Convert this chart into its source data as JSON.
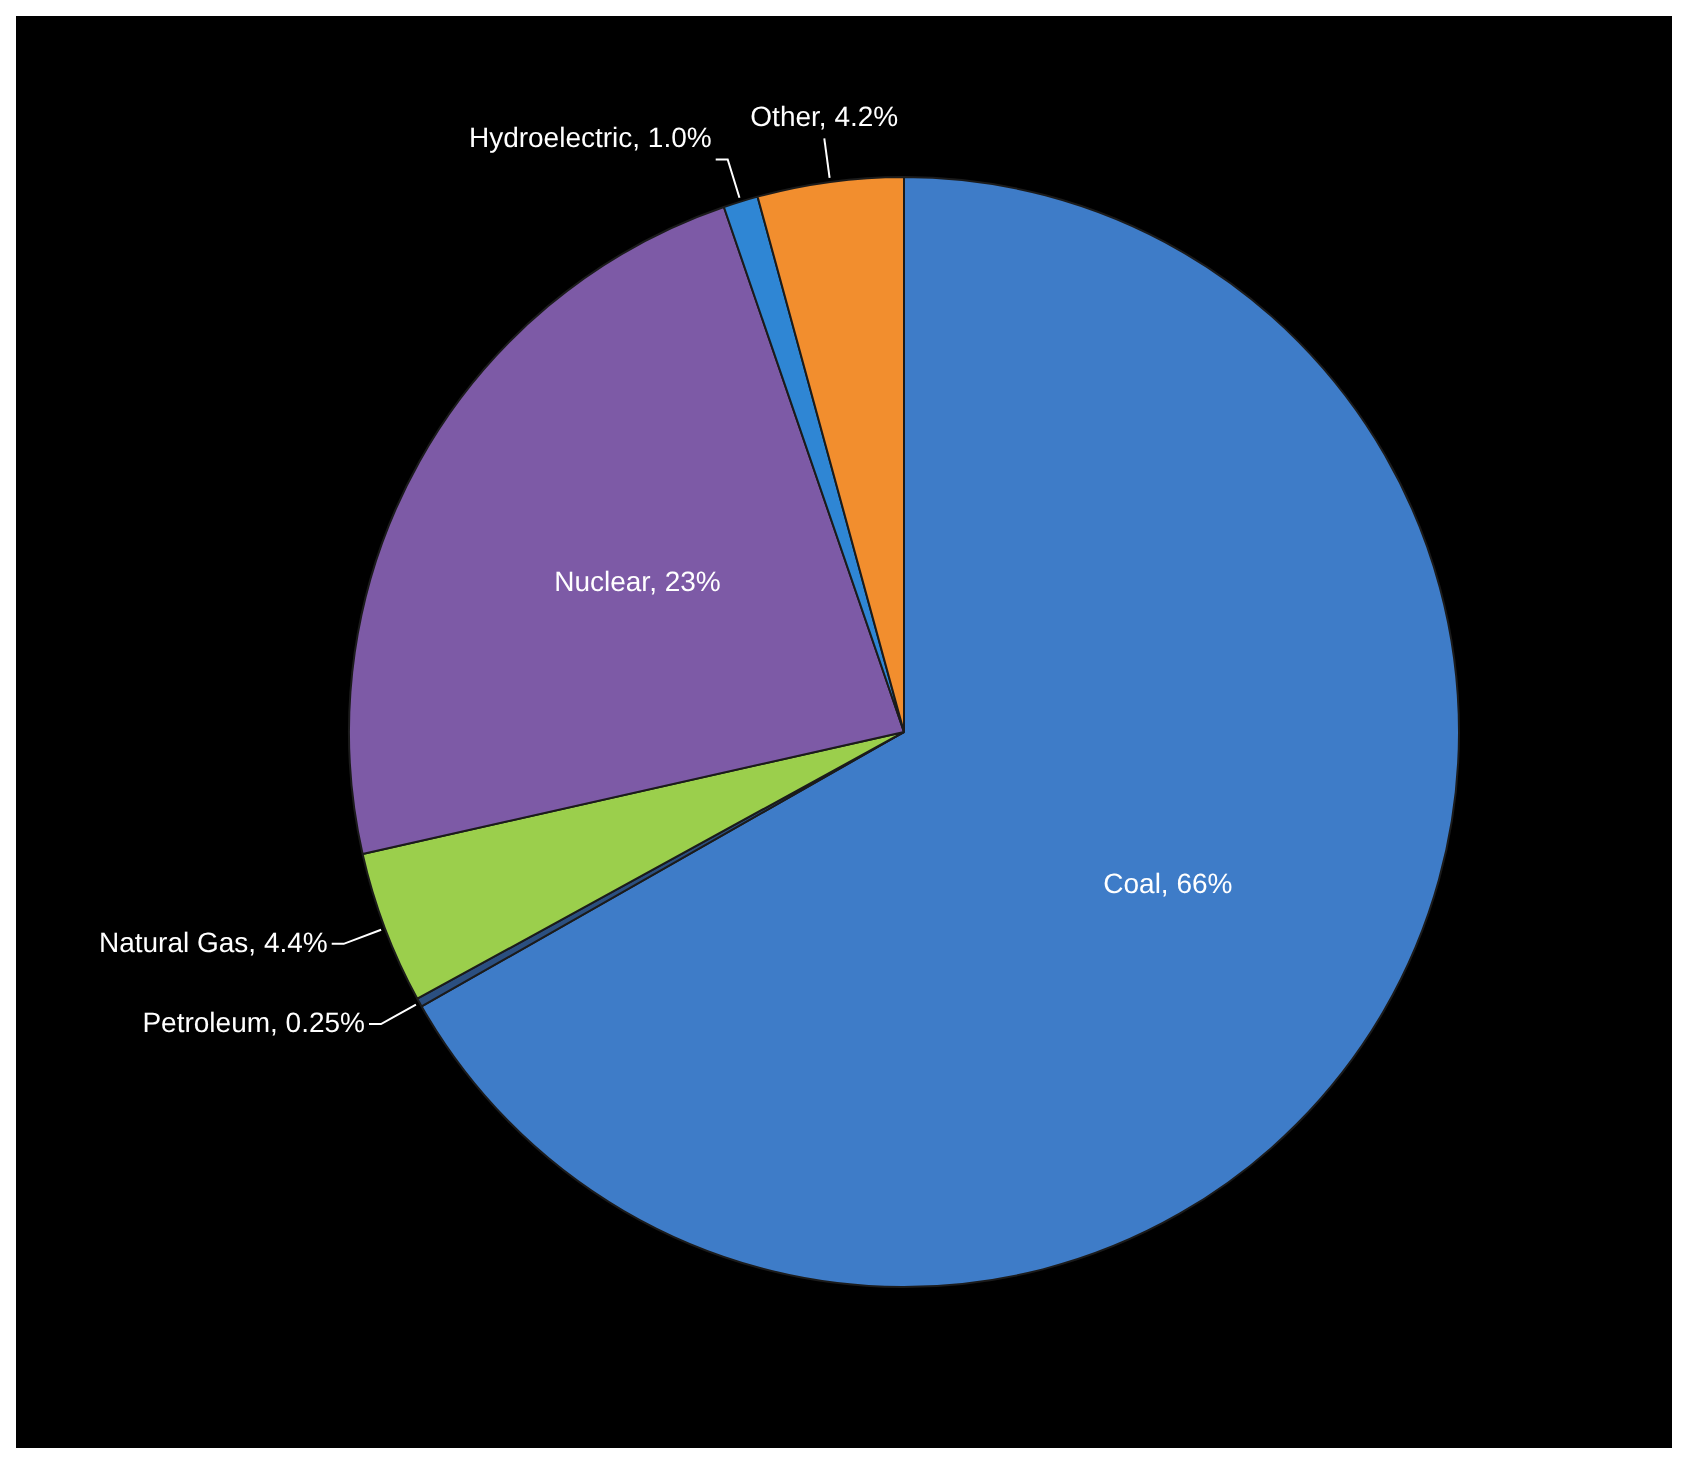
{
  "chart_data": {
    "type": "pie",
    "categories": [
      "Coal",
      "Petroleum",
      "Natural Gas",
      "Nuclear",
      "Hydroelectric",
      "Other"
    ],
    "values": [
      66,
      0.25,
      4.4,
      23,
      1.0,
      4.2
    ],
    "value_labels": [
      "66%",
      "0.25%",
      "4.4%",
      "23%",
      "1.0%",
      "4.2%"
    ],
    "colors": [
      "#3e7cc8",
      "#2b4f80",
      "#9bcf4c",
      "#7d5aa6",
      "#2f86d4",
      "#f28e2e"
    ],
    "legend": false
  }
}
